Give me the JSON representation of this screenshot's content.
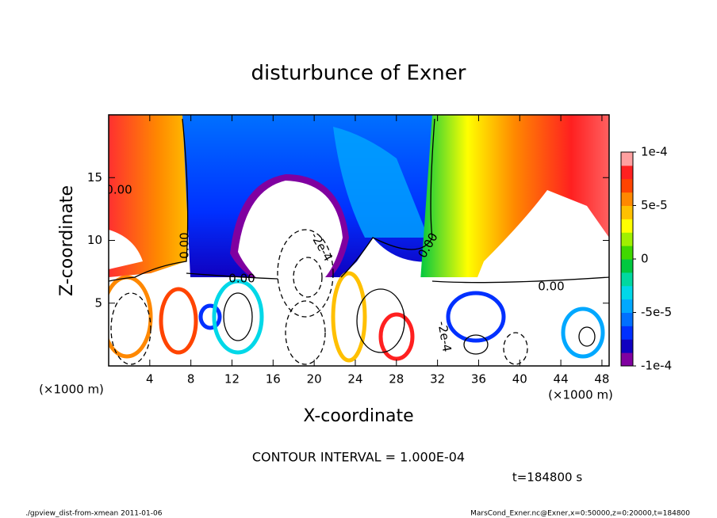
{
  "chart_data": {
    "type": "contour",
    "title": "disturbunce of Exner",
    "x_label": "X-coordinate",
    "y_label": "Z-coordinate",
    "x_unit": "(×1000 m)",
    "y_unit": "(×1000 m)",
    "xlim": [
      0,
      48.7
    ],
    "ylim": [
      0,
      20
    ],
    "xticks": [
      4,
      8,
      12,
      16,
      20,
      24,
      28,
      32,
      36,
      40,
      44,
      48
    ],
    "yticks": [
      5,
      10,
      15
    ],
    "colorbar": {
      "lim": [
        -0.0001,
        0.0001
      ],
      "ticks": [
        {
          "value": 0.0001,
          "label": "1e-4"
        },
        {
          "value": 5e-05,
          "label": "5e-5"
        },
        0,
        {
          "value": -5e-05,
          "label": "-5e-5"
        },
        {
          "value": -0.0001,
          "label": "-1e-4"
        }
      ],
      "colors": [
        "#8000a0",
        "#1000c0",
        "#0030ff",
        "#0070ff",
        "#00a8ff",
        "#00d8e8",
        "#00d8a0",
        "#00c840",
        "#40d800",
        "#a0f000",
        "#ffff00",
        "#ffc000",
        "#ff8800",
        "#ff4400",
        "#ff2020",
        "#ffa0a0"
      ]
    },
    "contour_labels": [
      "0.00",
      "0.00",
      "0.00",
      "0.00",
      "0.00",
      "-2e-4",
      "-2e-4"
    ],
    "contour_interval": "CONTOUR INTERVAL = 1.000E-04",
    "time_label": "t=184800 s",
    "footer_left": "./gpview_dist-from-xmean  2011-01-06",
    "footer_right": "MarsCond_Exner.nc@Exner,x=0:50000,z=0:20000,t=184800"
  }
}
